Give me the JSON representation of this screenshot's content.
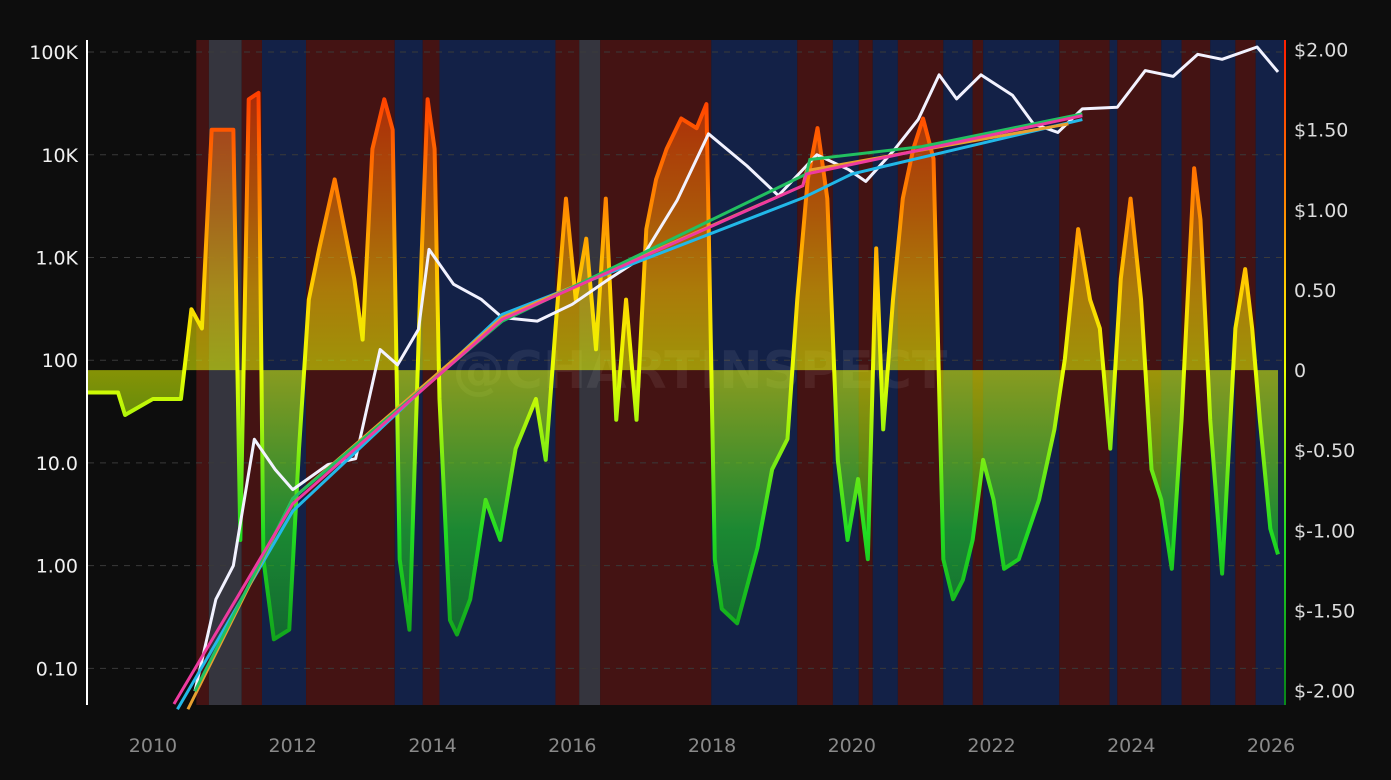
{
  "chart_data": {
    "type": "line",
    "title": "",
    "watermark": "@CHARTINSPECT",
    "xlim": [
      2009.07,
      2026.2
    ],
    "x_ticks": [
      "2010",
      "2012",
      "2014",
      "2016",
      "2018",
      "2020",
      "2022",
      "2024",
      "2026"
    ],
    "x_tick_values": [
      2010,
      2012,
      2014,
      2016,
      2018,
      2020,
      2022,
      2024,
      2026
    ],
    "y_left": {
      "scale": "log",
      "lim": [
        0.044,
        131000
      ],
      "ticks": [
        "100K",
        "10K",
        "1.0K",
        "100",
        "10.0",
        "1.00",
        "0.10"
      ],
      "tick_values": [
        100000,
        10000,
        1000,
        100,
        10,
        1,
        0.1
      ]
    },
    "y_right": {
      "scale": "linear",
      "lim": [
        -2.09,
        2.06
      ],
      "ticks": [
        "$2.00",
        "$1.50",
        "$1.00",
        "0.50",
        "0",
        "$-0.50",
        "$-1.00",
        "$-1.50",
        "$-2.00"
      ],
      "tick_values": [
        2,
        1.5,
        1,
        0.5,
        0,
        -0.5,
        -1,
        -1.5,
        -2
      ]
    },
    "grid": true,
    "colors": {
      "background": "#0d0d0d",
      "price": "#f2f2ff",
      "regime_red": "#4a1414",
      "regime_blue": "#14244e",
      "regime_gray": "#3a3a44",
      "osc_gradient": [
        "#ff2200",
        "#ff8c00",
        "#ffd000",
        "#e8ff00",
        "#22dd22",
        "#0a8a1a"
      ]
    },
    "regime_bands": [
      [
        2010.62,
        2010.8,
        "red"
      ],
      [
        2010.8,
        2011.27,
        "gray"
      ],
      [
        2011.27,
        2011.56,
        "red"
      ],
      [
        2011.56,
        2012.19,
        "blue"
      ],
      [
        2012.19,
        2013.46,
        "red"
      ],
      [
        2013.46,
        2013.86,
        "blue"
      ],
      [
        2013.86,
        2014.1,
        "red"
      ],
      [
        2014.1,
        2015.76,
        "blue"
      ],
      [
        2015.76,
        2016.1,
        "red"
      ],
      [
        2016.1,
        2016.4,
        "gray"
      ],
      [
        2016.4,
        2017.99,
        "red"
      ],
      [
        2017.99,
        2019.22,
        "blue"
      ],
      [
        2019.22,
        2019.73,
        "red"
      ],
      [
        2019.73,
        2020.1,
        "blue"
      ],
      [
        2020.1,
        2020.3,
        "red"
      ],
      [
        2020.3,
        2020.66,
        "blue"
      ],
      [
        2020.66,
        2021.31,
        "red"
      ],
      [
        2021.31,
        2021.73,
        "blue"
      ],
      [
        2021.73,
        2021.88,
        "red"
      ],
      [
        2021.88,
        2022.97,
        "blue"
      ],
      [
        2022.97,
        2023.69,
        "red"
      ],
      [
        2023.69,
        2023.8,
        "blue"
      ],
      [
        2023.8,
        2024.43,
        "red"
      ],
      [
        2024.43,
        2024.72,
        "blue"
      ],
      [
        2024.72,
        2025.13,
        "red"
      ],
      [
        2025.13,
        2025.49,
        "blue"
      ],
      [
        2025.49,
        2025.78,
        "red"
      ],
      [
        2025.78,
        2026.2,
        "blue"
      ]
    ],
    "price": [
      [
        2010.6,
        0.06
      ],
      [
        2010.9,
        0.47
      ],
      [
        2011.15,
        1
      ],
      [
        2011.45,
        17
      ],
      [
        2011.75,
        8.6
      ],
      [
        2012.0,
        5.5
      ],
      [
        2012.5,
        9.6
      ],
      [
        2012.9,
        11
      ],
      [
        2013.25,
        127
      ],
      [
        2013.5,
        90
      ],
      [
        2013.8,
        200
      ],
      [
        2013.95,
        1200
      ],
      [
        2014.3,
        550
      ],
      [
        2014.7,
        390
      ],
      [
        2015.0,
        260
      ],
      [
        2015.5,
        240
      ],
      [
        2016.0,
        350
      ],
      [
        2016.5,
        600
      ],
      [
        2017.0,
        1000
      ],
      [
        2017.5,
        3600
      ],
      [
        2017.95,
        16000
      ],
      [
        2018.5,
        7800
      ],
      [
        2018.95,
        4000
      ],
      [
        2019.5,
        10000
      ],
      [
        2019.95,
        7200
      ],
      [
        2020.2,
        5500
      ],
      [
        2020.6,
        11000
      ],
      [
        2020.95,
        22000
      ],
      [
        2021.25,
        60000
      ],
      [
        2021.5,
        35000
      ],
      [
        2021.85,
        60000
      ],
      [
        2022.3,
        38000
      ],
      [
        2022.6,
        20000
      ],
      [
        2022.95,
        16500
      ],
      [
        2023.3,
        28000
      ],
      [
        2023.8,
        29000
      ],
      [
        2024.2,
        66000
      ],
      [
        2024.6,
        58000
      ],
      [
        2024.95,
        95000
      ],
      [
        2025.3,
        85000
      ],
      [
        2025.8,
        112000
      ],
      [
        2026.1,
        64000
      ]
    ],
    "oscillator": [
      [
        2009.07,
        -0.14
      ],
      [
        2009.5,
        -0.14
      ],
      [
        2009.6,
        -0.28
      ],
      [
        2010.0,
        -0.18
      ],
      [
        2010.4,
        -0.18
      ],
      [
        2010.55,
        0.38
      ],
      [
        2010.7,
        0.26
      ],
      [
        2010.84,
        1.5
      ],
      [
        2011.15,
        1.5
      ],
      [
        2011.25,
        -1.06
      ],
      [
        2011.37,
        1.69
      ],
      [
        2011.51,
        1.73
      ],
      [
        2011.58,
        -1.18
      ],
      [
        2011.73,
        -1.68
      ],
      [
        2011.95,
        -1.62
      ],
      [
        2012.09,
        -0.49
      ],
      [
        2012.23,
        0.44
      ],
      [
        2012.38,
        0.76
      ],
      [
        2012.6,
        1.19
      ],
      [
        2012.74,
        0.88
      ],
      [
        2012.88,
        0.57
      ],
      [
        2013.0,
        0.19
      ],
      [
        2013.14,
        1.38
      ],
      [
        2013.31,
        1.69
      ],
      [
        2013.43,
        1.5
      ],
      [
        2013.53,
        -1.18
      ],
      [
        2013.67,
        -1.62
      ],
      [
        2013.82,
        0.44
      ],
      [
        2013.93,
        1.69
      ],
      [
        2014.03,
        1.38
      ],
      [
        2014.1,
        -0.18
      ],
      [
        2014.25,
        -1.56
      ],
      [
        2014.35,
        -1.65
      ],
      [
        2014.54,
        -1.43
      ],
      [
        2014.76,
        -0.81
      ],
      [
        2014.97,
        -1.06
      ],
      [
        2015.19,
        -0.49
      ],
      [
        2015.48,
        -0.18
      ],
      [
        2015.62,
        -0.56
      ],
      [
        2015.76,
        0.26
      ],
      [
        2015.91,
        1.07
      ],
      [
        2016.05,
        0.44
      ],
      [
        2016.2,
        0.82
      ],
      [
        2016.34,
        0.13
      ],
      [
        2016.48,
        1.07
      ],
      [
        2016.63,
        -0.31
      ],
      [
        2016.77,
        0.44
      ],
      [
        2016.92,
        -0.31
      ],
      [
        2017.06,
        0.88
      ],
      [
        2017.2,
        1.19
      ],
      [
        2017.35,
        1.38
      ],
      [
        2017.56,
        1.57
      ],
      [
        2017.78,
        1.51
      ],
      [
        2017.92,
        1.66
      ],
      [
        2018.04,
        -1.18
      ],
      [
        2018.14,
        -1.49
      ],
      [
        2018.36,
        -1.58
      ],
      [
        2018.65,
        -1.11
      ],
      [
        2018.86,
        -0.62
      ],
      [
        2019.08,
        -0.43
      ],
      [
        2019.22,
        0.44
      ],
      [
        2019.37,
        1.19
      ],
      [
        2019.51,
        1.51
      ],
      [
        2019.65,
        1.07
      ],
      [
        2019.8,
        -0.56
      ],
      [
        2019.94,
        -1.06
      ],
      [
        2020.09,
        -0.68
      ],
      [
        2020.23,
        -1.18
      ],
      [
        2020.35,
        0.76
      ],
      [
        2020.45,
        -0.37
      ],
      [
        2020.59,
        0.44
      ],
      [
        2020.73,
        1.07
      ],
      [
        2020.88,
        1.38
      ],
      [
        2021.02,
        1.57
      ],
      [
        2021.17,
        1.32
      ],
      [
        2021.31,
        -1.18
      ],
      [
        2021.45,
        -1.43
      ],
      [
        2021.59,
        -1.31
      ],
      [
        2021.73,
        -1.06
      ],
      [
        2021.88,
        -0.56
      ],
      [
        2022.03,
        -0.81
      ],
      [
        2022.18,
        -1.24
      ],
      [
        2022.39,
        -1.18
      ],
      [
        2022.68,
        -0.81
      ],
      [
        2022.9,
        -0.37
      ],
      [
        2023.05,
        0.07
      ],
      [
        2023.24,
        0.88
      ],
      [
        2023.41,
        0.44
      ],
      [
        2023.55,
        0.26
      ],
      [
        2023.7,
        -0.49
      ],
      [
        2023.85,
        0.57
      ],
      [
        2023.99,
        1.07
      ],
      [
        2024.14,
        0.44
      ],
      [
        2024.29,
        -0.62
      ],
      [
        2024.43,
        -0.81
      ],
      [
        2024.58,
        -1.24
      ],
      [
        2024.72,
        -0.31
      ],
      [
        2024.9,
        1.26
      ],
      [
        2024.99,
        0.94
      ],
      [
        2025.13,
        -0.31
      ],
      [
        2025.3,
        -1.27
      ],
      [
        2025.49,
        0.26
      ],
      [
        2025.63,
        0.63
      ],
      [
        2025.73,
        0.26
      ],
      [
        2025.84,
        -0.31
      ],
      [
        2025.99,
        -0.99
      ],
      [
        2026.1,
        -1.15
      ]
    ],
    "trend_lines": [
      {
        "color": "#22b8e8",
        "points": [
          [
            2010.35,
            0.04
          ],
          [
            2012.0,
            3.4
          ],
          [
            2015.0,
            280
          ],
          [
            2019.3,
            3800
          ],
          [
            2020.0,
            6500
          ],
          [
            2023.3,
            22000
          ]
        ]
      },
      {
        "color": "#e8a030",
        "points": [
          [
            2010.5,
            0.04
          ],
          [
            2012.0,
            4.5
          ],
          [
            2015.0,
            260
          ],
          [
            2019.3,
            5000
          ],
          [
            2019.35,
            7000
          ],
          [
            2023.1,
            20000
          ]
        ]
      },
      {
        "color": "#22c060",
        "points": [
          [
            2010.6,
            0.06
          ],
          [
            2012.0,
            4.5
          ],
          [
            2015.0,
            240
          ],
          [
            2019.35,
            6500
          ],
          [
            2019.4,
            9000
          ],
          [
            2021.0,
            12000
          ],
          [
            2023.3,
            25000
          ]
        ]
      },
      {
        "color": "#ee3aa0",
        "points": [
          [
            2010.3,
            0.045
          ],
          [
            2012.0,
            4
          ],
          [
            2015.0,
            250
          ],
          [
            2019.3,
            5000
          ],
          [
            2019.35,
            6500
          ],
          [
            2023.3,
            24000
          ]
        ]
      }
    ]
  }
}
